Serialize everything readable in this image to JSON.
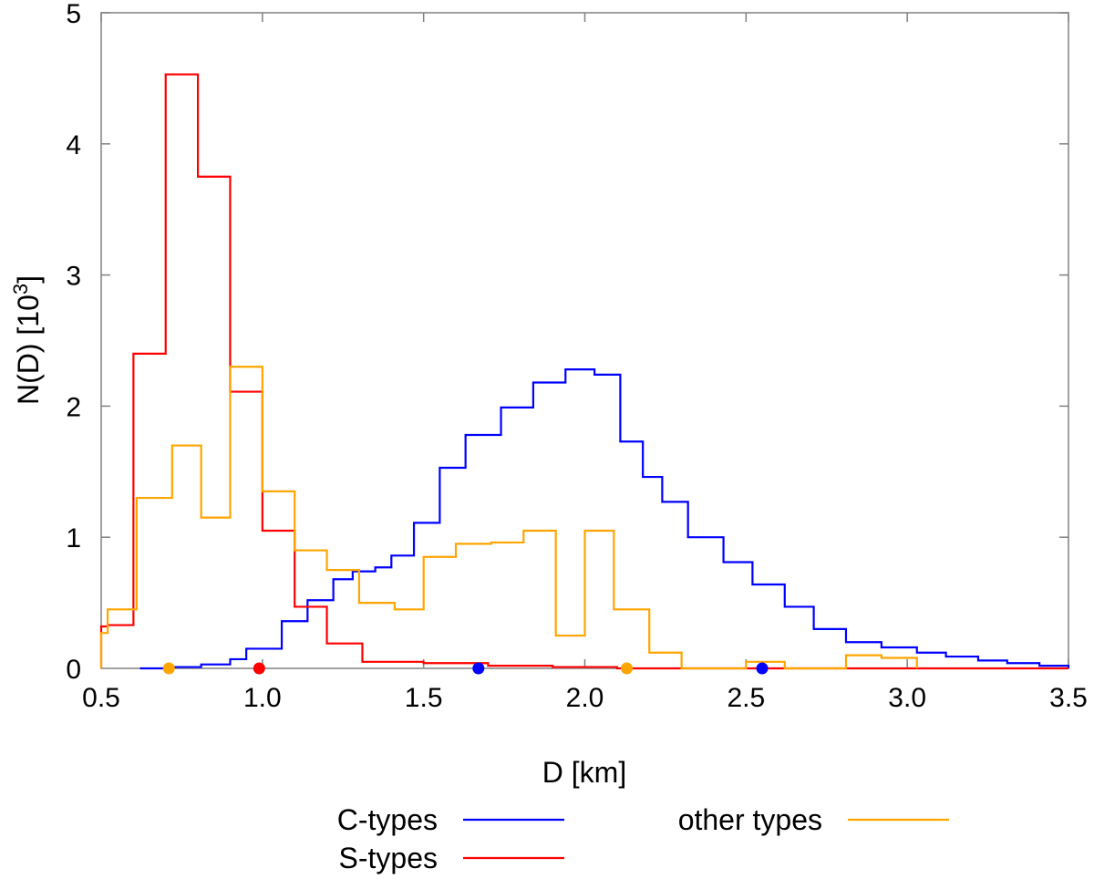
{
  "chart_data": {
    "type": "line",
    "step": true,
    "title": "",
    "xlabel": "D [km]",
    "ylabel_main": "N(D) [10",
    "ylabel_sup": "3",
    "ylabel_end": "]",
    "xlim": [
      0.5,
      3.5
    ],
    "ylim": [
      0,
      5
    ],
    "x_ticks": [
      0.5,
      1.0,
      1.5,
      2.0,
      2.5,
      3.0,
      3.5
    ],
    "x_tick_labels": [
      "0.5",
      "1.0",
      "1.5",
      "2.0",
      "2.5",
      "3.0",
      "3.5"
    ],
    "y_ticks": [
      0,
      1,
      2,
      3,
      4,
      5
    ],
    "y_tick_labels": [
      "0",
      "1",
      "2",
      "3",
      "4",
      "5"
    ],
    "grid": false,
    "legend_position": "bottom",
    "series": [
      {
        "name": "C-types",
        "color": "#0000ff",
        "edges": [
          0.62,
          0.71,
          0.81,
          0.9,
          0.95,
          1.06,
          1.14,
          1.22,
          1.28,
          1.35,
          1.4,
          1.47,
          1.55,
          1.63,
          1.74,
          1.84,
          1.94,
          2.03,
          2.11,
          2.18,
          2.24,
          2.32,
          2.43,
          2.52,
          2.62,
          2.71,
          2.81,
          2.92,
          3.03,
          3.12,
          3.22,
          3.31,
          3.41,
          3.5
        ],
        "values": [
          0.0,
          0.01,
          0.03,
          0.07,
          0.15,
          0.36,
          0.52,
          0.68,
          0.74,
          0.77,
          0.86,
          1.11,
          1.53,
          1.78,
          1.99,
          2.18,
          2.28,
          2.24,
          1.73,
          1.46,
          1.27,
          1.0,
          0.81,
          0.64,
          0.47,
          0.3,
          0.2,
          0.16,
          0.12,
          0.09,
          0.06,
          0.04,
          0.02
        ],
        "marker_x": [
          1.67,
          2.55
        ]
      },
      {
        "name": "S-types",
        "color": "#ff0000",
        "edges": [
          0.5,
          0.52,
          0.6,
          0.7,
          0.8,
          0.9,
          1.0,
          1.1,
          1.2,
          1.31,
          1.5,
          1.7,
          1.9,
          2.1,
          2.5,
          3.5
        ],
        "values": [
          0.32,
          0.33,
          2.4,
          4.53,
          3.75,
          2.11,
          1.05,
          0.47,
          0.19,
          0.05,
          0.04,
          0.02,
          0.01,
          0.0,
          0.0
        ],
        "marker_x": [
          0.99
        ]
      },
      {
        "name": "other types",
        "color": "#ffa500",
        "edges": [
          0.5,
          0.52,
          0.61,
          0.72,
          0.81,
          0.9,
          1.0,
          1.1,
          1.2,
          1.3,
          1.41,
          1.5,
          1.6,
          1.71,
          1.81,
          1.91,
          2.0,
          2.09,
          2.2,
          2.3,
          2.41,
          2.5,
          2.62,
          2.72,
          2.81,
          2.92,
          3.03
        ],
        "values": [
          0.27,
          0.45,
          1.3,
          1.7,
          1.15,
          2.3,
          1.35,
          0.9,
          0.75,
          0.5,
          0.45,
          0.85,
          0.95,
          0.96,
          1.05,
          0.25,
          1.05,
          0.45,
          0.12,
          0.0,
          0.0,
          0.05,
          0.0,
          0.0,
          0.1,
          0.08
        ],
        "marker_x": [
          0.71,
          2.13
        ]
      }
    ]
  }
}
